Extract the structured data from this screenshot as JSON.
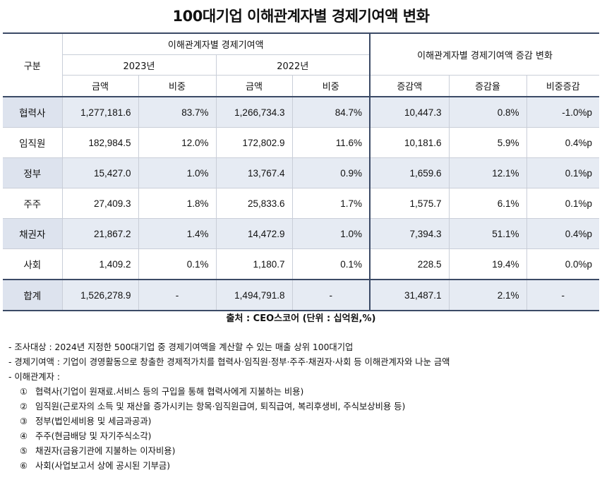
{
  "title": "100대기업 이해관계자별 경제기여액 변화",
  "header": {
    "category": "구분",
    "group_left": "이해관계자별 경제기여액",
    "group_right": "이해관계자별 경제기여액 증감 변화",
    "year_2023": "2023년",
    "year_2022": "2022년",
    "amount": "금액",
    "share": "비중",
    "change_amount": "증감액",
    "change_rate": "증감율",
    "share_change": "비중증감"
  },
  "rows": [
    {
      "label": "협력사",
      "a2023": "1,277,181.6",
      "s2023": "83.7%",
      "a2022": "1,266,734.3",
      "s2022": "84.7%",
      "chg": "10,447.3",
      "rate": "0.8%",
      "schg": "-1.0%p"
    },
    {
      "label": "임직원",
      "a2023": "182,984.5",
      "s2023": "12.0%",
      "a2022": "172,802.9",
      "s2022": "11.6%",
      "chg": "10,181.6",
      "rate": "5.9%",
      "schg": "0.4%p"
    },
    {
      "label": "정부",
      "a2023": "15,427.0",
      "s2023": "1.0%",
      "a2022": "13,767.4",
      "s2022": "0.9%",
      "chg": "1,659.6",
      "rate": "12.1%",
      "schg": "0.1%p"
    },
    {
      "label": "주주",
      "a2023": "27,409.3",
      "s2023": "1.8%",
      "a2022": "25,833.6",
      "s2022": "1.7%",
      "chg": "1,575.7",
      "rate": "6.1%",
      "schg": "0.1%p"
    },
    {
      "label": "채권자",
      "a2023": "21,867.2",
      "s2023": "1.4%",
      "a2022": "14,472.9",
      "s2022": "1.0%",
      "chg": "7,394.3",
      "rate": "51.1%",
      "schg": "0.4%p"
    },
    {
      "label": "사회",
      "a2023": "1,409.2",
      "s2023": "0.1%",
      "a2022": "1,180.7",
      "s2022": "0.1%",
      "chg": "228.5",
      "rate": "19.4%",
      "schg": "0.0%p"
    },
    {
      "label": "합계",
      "a2023": "1,526,278.9",
      "s2023": "-",
      "a2022": "1,494,791.8",
      "s2022": "-",
      "chg": "31,487.1",
      "rate": "2.1%",
      "schg": "-"
    }
  ],
  "source": "출처 : CEO스코어 (단위 : 십억원,%)",
  "notes": {
    "line1": "- 조사대상 : 2024년 지정한 500대기업 중 경제기여액을 계산할 수 있는 매출 상위 100대기업",
    "line2": "- 경제기여액 : 기업이 경영활동으로 창출한 경제적가치를 협력사·임직원·정부·주주·채권자·사회 등 이해관계자와 나눈 금액",
    "line3": "- 이해관계자 :",
    "items": [
      {
        "mark": "①",
        "text": "협력사(기업이 원재료.서비스 등의 구입을 통해 협력사에게 지불하는 비용)"
      },
      {
        "mark": "②",
        "text": "임직원(근로자의 소득 및 재산을 증가시키는 항목·임직원급여, 퇴직급여, 복리후생비, 주식보상비용 등)"
      },
      {
        "mark": "③",
        "text": "정부(법인세비용 및 세금과공과)"
      },
      {
        "mark": "④",
        "text": "주주(현금배당 및 자기주식소각)"
      },
      {
        "mark": "⑤",
        "text": "채권자(금융기관에 지불하는 이자비용)"
      },
      {
        "mark": "⑥",
        "text": "사회(사업보고서 상에 공시된 기부금)"
      }
    ]
  }
}
